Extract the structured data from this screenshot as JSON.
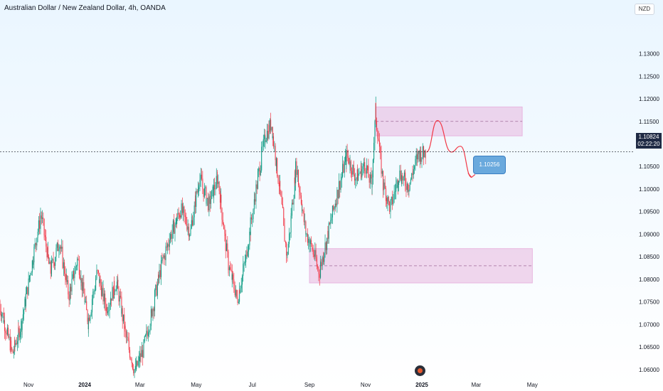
{
  "header": {
    "title": "Australian Dollar / New Zealand Dollar, 4h, OANDA"
  },
  "currency_button": {
    "label": "NZD"
  },
  "price_tag": {
    "price": "1.10824",
    "countdown": "02:22:20"
  },
  "callout": {
    "label": "1.10256"
  },
  "colors": {
    "up": "#089981",
    "down": "#f23645",
    "zone": "#e8b6df",
    "zone_line": "#a06a9a",
    "projection": "#f23645",
    "callout": "#6aa9dd"
  },
  "icons": {
    "logo": "tradingview-logo-icon"
  },
  "chart_data": {
    "type": "candlestick",
    "title": "Australian Dollar / New Zealand Dollar, 4h, OANDA",
    "y_tick_labels": [
      "1.13000",
      "1.12500",
      "1.12000",
      "1.11500",
      "1.11000",
      "1.10500",
      "1.10000",
      "1.09500",
      "1.09000",
      "1.08500",
      "1.08000",
      "1.07500",
      "1.07000",
      "1.06500",
      "1.06000"
    ],
    "x_tick_labels": [
      "Nov",
      "2024",
      "Mar",
      "May",
      "Jul",
      "Sep",
      "Nov",
      "2025",
      "Mar",
      "May"
    ],
    "ylim": [
      1.0595,
      1.1345
    ],
    "grid": false,
    "current_price": 1.10824,
    "price_path": [
      [
        "2023-10-01",
        1.0745
      ],
      [
        "2023-10-15",
        1.0635
      ],
      [
        "2023-10-25",
        1.0705
      ],
      [
        "2023-11-05",
        1.0835
      ],
      [
        "2023-11-15",
        1.0945
      ],
      [
        "2023-11-25",
        1.0815
      ],
      [
        "2023-12-05",
        1.0885
      ],
      [
        "2023-12-15",
        1.0765
      ],
      [
        "2023-12-25",
        1.0845
      ],
      [
        "2024-01-05",
        1.0705
      ],
      [
        "2024-01-15",
        1.0815
      ],
      [
        "2024-01-25",
        1.0735
      ],
      [
        "2024-02-05",
        1.0795
      ],
      [
        "2024-02-15",
        1.0675
      ],
      [
        "2024-02-25",
        1.0595
      ],
      [
        "2024-03-05",
        1.0645
      ],
      [
        "2024-03-15",
        1.0735
      ],
      [
        "2024-03-25",
        1.0835
      ],
      [
        "2024-04-05",
        1.0905
      ],
      [
        "2024-04-15",
        1.0955
      ],
      [
        "2024-04-25",
        1.0905
      ],
      [
        "2024-05-05",
        1.1025
      ],
      [
        "2024-05-15",
        1.0965
      ],
      [
        "2024-05-25",
        1.1025
      ],
      [
        "2024-06-05",
        1.0835
      ],
      [
        "2024-06-15",
        1.0755
      ],
      [
        "2024-06-25",
        1.0855
      ],
      [
        "2024-07-05",
        1.0995
      ],
      [
        "2024-07-15",
        1.1115
      ],
      [
        "2024-07-22",
        1.1145
      ],
      [
        "2024-08-01",
        1.0985
      ],
      [
        "2024-08-08",
        1.0845
      ],
      [
        "2024-08-18",
        1.1055
      ],
      [
        "2024-08-28",
        1.0905
      ],
      [
        "2024-09-05",
        1.0865
      ],
      [
        "2024-09-12",
        1.0815
      ],
      [
        "2024-09-22",
        1.0905
      ],
      [
        "2024-10-01",
        1.0985
      ],
      [
        "2024-10-12",
        1.1075
      ],
      [
        "2024-10-22",
        1.1025
      ],
      [
        "2024-11-01",
        1.1055
      ],
      [
        "2024-11-08",
        1.1005
      ],
      [
        "2024-11-12",
        1.1175
      ],
      [
        "2024-11-20",
        1.1015
      ],
      [
        "2024-11-28",
        1.0955
      ],
      [
        "2024-12-08",
        1.1035
      ],
      [
        "2024-12-18",
        1.1005
      ],
      [
        "2024-12-28",
        1.1075
      ],
      [
        "2025-01-06",
        1.1082
      ]
    ],
    "zones": [
      {
        "name": "supply",
        "from": "2024-11-12",
        "to": "2025-04-20",
        "low": 1.1118,
        "high": 1.1182,
        "mid": 1.115
      },
      {
        "name": "demand",
        "from": "2024-09-01",
        "to": "2025-05-01",
        "low": 1.0792,
        "high": 1.0868,
        "mid": 1.083
      }
    ],
    "projection": [
      [
        "2025-01-06",
        1.1082
      ],
      [
        "2025-01-18",
        1.1152
      ],
      [
        "2025-02-02",
        1.1082
      ],
      [
        "2025-02-12",
        1.1095
      ],
      [
        "2025-02-24",
        1.1026
      ]
    ],
    "callout_value": 1.10256
  }
}
